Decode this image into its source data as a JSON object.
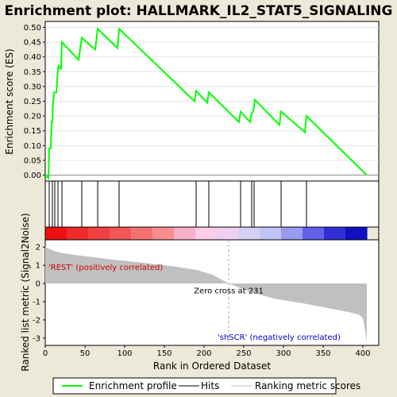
{
  "chart_data": {
    "type": "line",
    "title": "Enrichment plot: HALLMARK_IL2_STAT5_SIGNALING",
    "es_panel": {
      "ylabel": "Enrichment score (ES)",
      "ylim": [
        -0.02,
        0.52
      ],
      "yticks": [
        "0.00",
        "0.05",
        "0.10",
        "0.15",
        "0.20",
        "0.25",
        "0.30",
        "0.35",
        "0.40",
        "0.45",
        "0.50"
      ],
      "series": [
        {
          "name": "Enrichment profile",
          "color": "#00ff00",
          "x": [
            0,
            4,
            5,
            7,
            8,
            9,
            9.5,
            10,
            11,
            12,
            13,
            13.5,
            14,
            15,
            16,
            17,
            19,
            20,
            21,
            42,
            46,
            63,
            66,
            91,
            93,
            188,
            190,
            204,
            206,
            244,
            246,
            258,
            260,
            262,
            264,
            295,
            297,
            327,
            329,
            405
          ],
          "y": [
            0,
            -0.01,
            0.09,
            0.09,
            0.18,
            0.18,
            0.24,
            0.24,
            0.28,
            0.28,
            0.28,
            0.28,
            0.28,
            0.32,
            0.36,
            0.37,
            0.36,
            0.36,
            0.45,
            0.39,
            0.465,
            0.425,
            0.495,
            0.43,
            0.495,
            0.25,
            0.285,
            0.245,
            0.28,
            0.18,
            0.215,
            0.18,
            0.21,
            0.215,
            0.255,
            0.17,
            0.215,
            0.145,
            0.2,
            0
          ]
        }
      ]
    },
    "hits_panel": {
      "hits": [
        5,
        9,
        12,
        16,
        21,
        46,
        66,
        93,
        190,
        206,
        246,
        260,
        263,
        297,
        329
      ]
    },
    "rank_panel": {
      "ylabel": "Ranked list metric (Signal2Noise)",
      "xlabel": "Rank in Ordered Dataset",
      "xlim": [
        0,
        420
      ],
      "ylim": [
        -3.4,
        2.4
      ],
      "yticks": [
        "2",
        "1",
        "0",
        "-1",
        "-2",
        "-3"
      ],
      "xticks": [
        "0",
        "50",
        "100",
        "150",
        "200",
        "250",
        "300",
        "350",
        "400"
      ],
      "zero_cross": 231,
      "zero_cross_label": "Zero cross at 231",
      "positive_label": "'REST' (positively correlated)",
      "negative_label": "'shSCR' (negatively correlated)",
      "metric_profile": {
        "x": [
          0,
          2,
          5,
          10,
          20,
          40,
          60,
          80,
          100,
          130,
          160,
          190,
          210,
          231,
          260,
          290,
          320,
          350,
          380,
          395,
          400,
          403,
          405
        ],
        "y": [
          2.05,
          1.95,
          1.9,
          1.8,
          1.68,
          1.55,
          1.45,
          1.33,
          1.25,
          1.1,
          0.95,
          0.75,
          0.5,
          0.0,
          -0.5,
          -0.85,
          -1.05,
          -1.3,
          -1.55,
          -1.7,
          -1.9,
          -2.6,
          -3.2
        ]
      },
      "heatmap_colors": [
        "#ee1111",
        "#ee2a2a",
        "#f04040",
        "#f25757",
        "#f47272",
        "#f78e8e",
        "#fab0ca",
        "#fccce8",
        "#f0d0ee",
        "#d8d0f4",
        "#c0c4f6",
        "#9a9af0",
        "#6060e8",
        "#3030d6",
        "#1010c0"
      ]
    },
    "legend": [
      {
        "label": "Enrichment profile",
        "color": "#00ff00"
      },
      {
        "label": "Hits",
        "color": "#000000"
      },
      {
        "label": "Ranking metric scores",
        "color": "#c0c0c0"
      }
    ]
  }
}
